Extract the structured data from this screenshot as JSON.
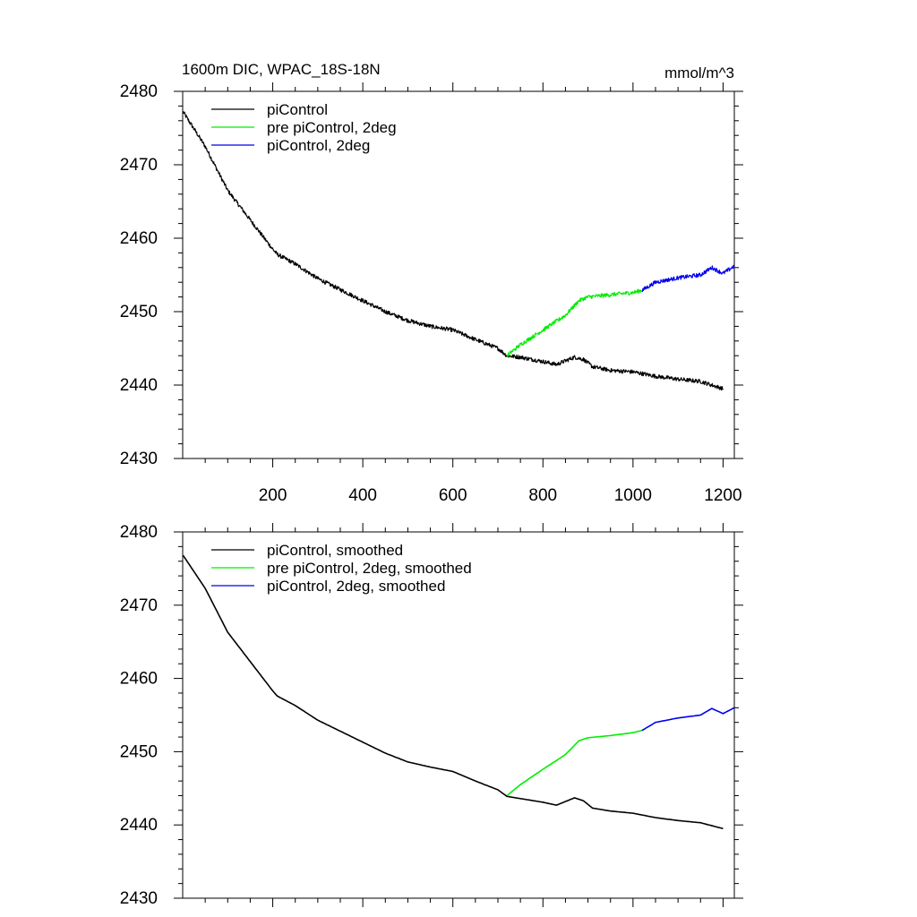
{
  "figure": {
    "title": "1600m DIC, WPAC_18S-18N",
    "units": "mmol/m^3"
  },
  "chart_data": [
    {
      "type": "line",
      "title": "1600m DIC, WPAC_18S-18N",
      "units_label": "mmol/m^3",
      "xlabel": "",
      "ylabel": "",
      "xlim": [
        0,
        1225
      ],
      "ylim": [
        2430,
        2480
      ],
      "x_ticks": [
        200,
        400,
        600,
        800,
        1000,
        1200
      ],
      "x_tick_labels": [
        "200",
        "400",
        "600",
        "800",
        "1000",
        "1200"
      ],
      "y_ticks": [
        2430,
        2440,
        2450,
        2460,
        2470,
        2480
      ],
      "y_tick_labels": [
        "2430",
        "2440",
        "2450",
        "2460",
        "2470",
        "2480"
      ],
      "show_x_tick_labels": true,
      "noisy": true,
      "legend_position": "top-left",
      "series": [
        {
          "name": "piControl",
          "color": "#000000",
          "x": [
            1,
            50,
            100,
            150,
            200,
            210,
            250,
            300,
            350,
            400,
            450,
            500,
            550,
            600,
            650,
            700,
            720,
            750,
            800,
            830,
            870,
            890,
            910,
            950,
            1000,
            1050,
            1100,
            1150,
            1200
          ],
          "y": [
            2477.2,
            2472.5,
            2466.5,
            2462.5,
            2458.5,
            2457.8,
            2456.5,
            2454.5,
            2453.0,
            2451.5,
            2450.0,
            2448.8,
            2448.0,
            2447.5,
            2446.2,
            2445.0,
            2444.0,
            2443.8,
            2443.2,
            2442.8,
            2443.8,
            2443.5,
            2442.5,
            2442.0,
            2441.8,
            2441.2,
            2440.8,
            2440.5,
            2439.5
          ]
        },
        {
          "name": "pre piControl, 2deg",
          "color": "#00ee00",
          "x": [
            720,
            750,
            800,
            850,
            880,
            900,
            950,
            1000,
            1020
          ],
          "y": [
            2444.0,
            2445.5,
            2447.5,
            2449.5,
            2451.5,
            2452.0,
            2452.3,
            2452.6,
            2452.9
          ],
          "comment": ""
        },
        {
          "name": "piControl, 2deg",
          "color": "#0000ee",
          "x": [
            1020,
            1050,
            1100,
            1150,
            1175,
            1200,
            1225
          ],
          "y": [
            2452.9,
            2454.0,
            2454.6,
            2455.0,
            2456.0,
            2455.2,
            2456.2
          ]
        }
      ]
    },
    {
      "type": "line",
      "title": "",
      "xlabel": "",
      "ylabel": "",
      "xlim": [
        0,
        1225
      ],
      "ylim": [
        2430,
        2480
      ],
      "x_ticks": [
        200,
        400,
        600,
        800,
        1000,
        1200
      ],
      "x_tick_labels": [
        "",
        "",
        "",
        "",
        "",
        ""
      ],
      "y_ticks": [
        2430,
        2440,
        2450,
        2460,
        2470,
        2480
      ],
      "y_tick_labels": [
        "2430",
        "2440",
        "2450",
        "2460",
        "2470",
        "2480"
      ],
      "show_x_tick_labels": false,
      "noisy": false,
      "legend_position": "top-left",
      "series": [
        {
          "name": "piControl, smoothed",
          "color": "#000000",
          "x": [
            1,
            50,
            100,
            150,
            200,
            210,
            250,
            300,
            350,
            400,
            450,
            500,
            550,
            600,
            650,
            700,
            720,
            750,
            800,
            830,
            870,
            890,
            910,
            950,
            1000,
            1050,
            1100,
            1150,
            1200
          ],
          "y": [
            2476.8,
            2472.3,
            2466.3,
            2462.3,
            2458.3,
            2457.6,
            2456.3,
            2454.3,
            2452.8,
            2451.3,
            2449.8,
            2448.6,
            2447.9,
            2447.3,
            2446.0,
            2444.8,
            2443.9,
            2443.6,
            2443.1,
            2442.7,
            2443.7,
            2443.3,
            2442.3,
            2441.9,
            2441.6,
            2441.0,
            2440.6,
            2440.3,
            2439.5
          ]
        },
        {
          "name": "pre piControl, 2deg, smoothed",
          "color": "#00ee00",
          "x": [
            720,
            750,
            800,
            850,
            880,
            900,
            950,
            1000,
            1020
          ],
          "y": [
            2444.0,
            2445.5,
            2447.6,
            2449.6,
            2451.5,
            2451.9,
            2452.2,
            2452.6,
            2452.9
          ]
        },
        {
          "name": "piControl, 2deg, smoothed",
          "color": "#0000ee",
          "x": [
            1020,
            1050,
            1100,
            1150,
            1175,
            1200,
            1225
          ],
          "y": [
            2452.9,
            2454.0,
            2454.6,
            2455.0,
            2455.9,
            2455.2,
            2456.0
          ]
        }
      ]
    }
  ]
}
